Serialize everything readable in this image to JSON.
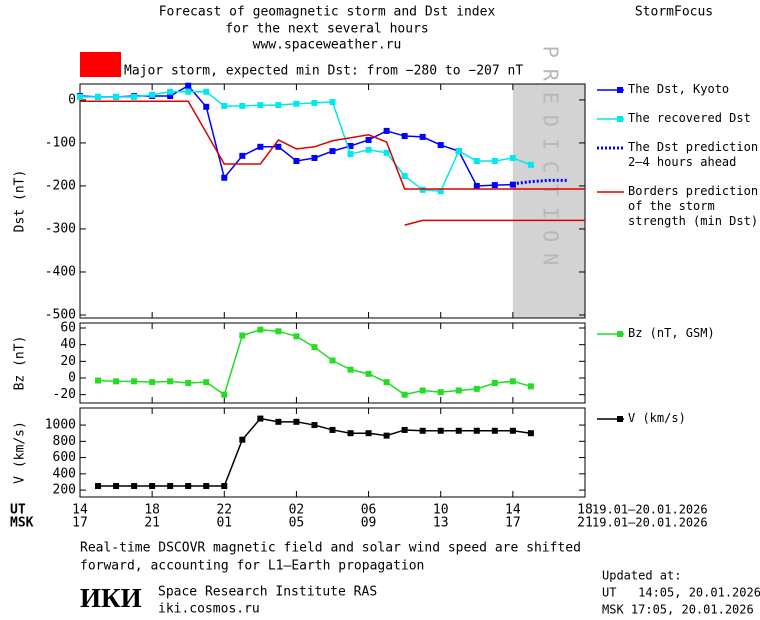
{
  "header": {
    "title_lines": [
      "Forecast of geomagnetic storm and Dst index",
      "for the next several hours",
      "www.spaceweather.ru"
    ],
    "brand": "StormFocus"
  },
  "chart_data": [
    {
      "type": "line",
      "ylabel": "Dst (nT)",
      "ylim": [
        -507,
        37
      ],
      "yticks": [
        0,
        -100,
        -200,
        -300,
        -400,
        -500
      ],
      "storm_label": "Major storm, expected min Dst: from −280 to −207 nT",
      "storm_color": "#ff0000",
      "shaded": {
        "from": 38,
        "to": 42,
        "label": "PREDICTION",
        "color": "#d3d3d3"
      },
      "series": [
        {
          "name": "The Dst, Kyoto",
          "color": "#0000ff",
          "marker": "square",
          "x": [
            14,
            15,
            16,
            17,
            18,
            19,
            20,
            21,
            22,
            23,
            24,
            25,
            26,
            27,
            28,
            29,
            30,
            31,
            32,
            33,
            34,
            35,
            36,
            37,
            38
          ],
          "values": [
            9,
            7,
            7,
            9,
            9,
            9,
            33,
            -16,
            -181,
            -130,
            -109,
            -109,
            -142,
            -135,
            -119,
            -107,
            -93,
            -72,
            -84,
            -86,
            -105,
            -119,
            -200,
            -198,
            -197
          ]
        },
        {
          "name": "The recovered Dst",
          "color": "#00e8f0",
          "marker": "square",
          "x": [
            14,
            15,
            16,
            17,
            18,
            19,
            20,
            21,
            22,
            23,
            24,
            25,
            26,
            27,
            28,
            29,
            30,
            31,
            32,
            33,
            34,
            35,
            36,
            37,
            38,
            39
          ],
          "values": [
            7,
            7,
            7,
            7,
            12,
            19,
            19,
            19,
            -14,
            -14,
            -12,
            -12,
            -9,
            -7,
            -5,
            -126,
            -116,
            -123,
            -177,
            -209,
            -212,
            -119,
            -142,
            -142,
            -135,
            -151
          ]
        },
        {
          "name": "The Dst prediction\n2–4 hours ahead",
          "color": "#0000ff",
          "dash": "dotted",
          "x": [
            38,
            39,
            40,
            41
          ],
          "values": [
            -195,
            -190,
            -187,
            -187
          ]
        },
        {
          "name": "Borders prediction\nof the storm\nstrength (min Dst)",
          "color": "#dd0000",
          "x": [
            14,
            20,
            22,
            24,
            25,
            26,
            27,
            28,
            30,
            31,
            32,
            42
          ],
          "values": [
            -3,
            -3,
            -149,
            -149,
            -93,
            -114,
            -109,
            -95,
            -81,
            -98,
            -207,
            -207
          ]
        }
      ],
      "lower_border": {
        "color": "#dd0000",
        "x": [
          32,
          33,
          42
        ],
        "values": [
          -291,
          -280,
          -280
        ]
      }
    },
    {
      "type": "line",
      "ylabel": "Bz (nT)",
      "ylim": [
        -30,
        66
      ],
      "yticks": [
        -20,
        0,
        20,
        40,
        60
      ],
      "series": [
        {
          "name": "Bz (nT, GSM)",
          "color": "#22dd22",
          "marker": "square",
          "x": [
            15,
            16,
            17,
            18,
            19,
            20,
            21,
            22,
            23,
            24,
            25,
            26,
            27,
            28,
            29,
            30,
            31,
            32,
            33,
            34,
            35,
            36,
            37,
            38,
            39
          ],
          "values": [
            -3,
            -4,
            -4,
            -5,
            -4,
            -6,
            -5,
            -20,
            51,
            58,
            56,
            50,
            37,
            21,
            10,
            5,
            -5,
            -20,
            -15,
            -17,
            -15,
            -13,
            -6,
            -4,
            -10
          ]
        }
      ]
    },
    {
      "type": "line",
      "ylabel": "V (km/s)",
      "ylim": [
        115,
        1210
      ],
      "yticks": [
        200,
        400,
        600,
        800,
        1000
      ],
      "series": [
        {
          "name": "V (km/s)",
          "color": "#000000",
          "marker": "square",
          "x": [
            15,
            16,
            17,
            18,
            19,
            20,
            21,
            22,
            23,
            24,
            25,
            26,
            27,
            28,
            29,
            30,
            31,
            32,
            33,
            34,
            35,
            36,
            37,
            38,
            39
          ],
          "values": [
            250,
            250,
            250,
            250,
            250,
            250,
            250,
            250,
            820,
            1080,
            1040,
            1040,
            1000,
            940,
            900,
            900,
            870,
            940,
            930,
            930,
            930,
            930,
            930,
            930,
            900
          ]
        }
      ],
      "xlim": [
        14,
        42
      ],
      "xlabel": "UT",
      "xticks": [
        {
          "value": 14,
          "label": "14"
        },
        {
          "value": 18,
          "label": "18"
        },
        {
          "value": 22,
          "label": "22"
        },
        {
          "value": 26,
          "label": "02"
        },
        {
          "value": 30,
          "label": "06"
        },
        {
          "value": 34,
          "label": "10"
        },
        {
          "value": 38,
          "label": "14"
        },
        {
          "value": 42,
          "label": "18"
        }
      ],
      "x2label": "MSK",
      "x2ticks": [
        {
          "value": 14,
          "label": "17"
        },
        {
          "value": 18,
          "label": "21"
        },
        {
          "value": 22,
          "label": "01"
        },
        {
          "value": 26,
          "label": "05"
        },
        {
          "value": 30,
          "label": "09"
        },
        {
          "value": 34,
          "label": "13"
        },
        {
          "value": 38,
          "label": "17"
        },
        {
          "value": 42,
          "label": "21"
        }
      ],
      "x_dates": "19.01–20.01.2026",
      "x2_dates": "19.01–20.01.2026"
    }
  ],
  "footer": {
    "note_lines": [
      "Real-time DSCOVR magnetic field and solar wind speed are shifted",
      "forward, accounting for L1–Earth propagation"
    ],
    "logo": "ИКИ",
    "institute": "Space Research Institute RAS",
    "site": "iki.cosmos.ru",
    "updated_label": "Updated at:",
    "updated_ut": "UT   14:05, 20.01.2026",
    "updated_msk": "MSK 17:05, 20.01.2026"
  }
}
